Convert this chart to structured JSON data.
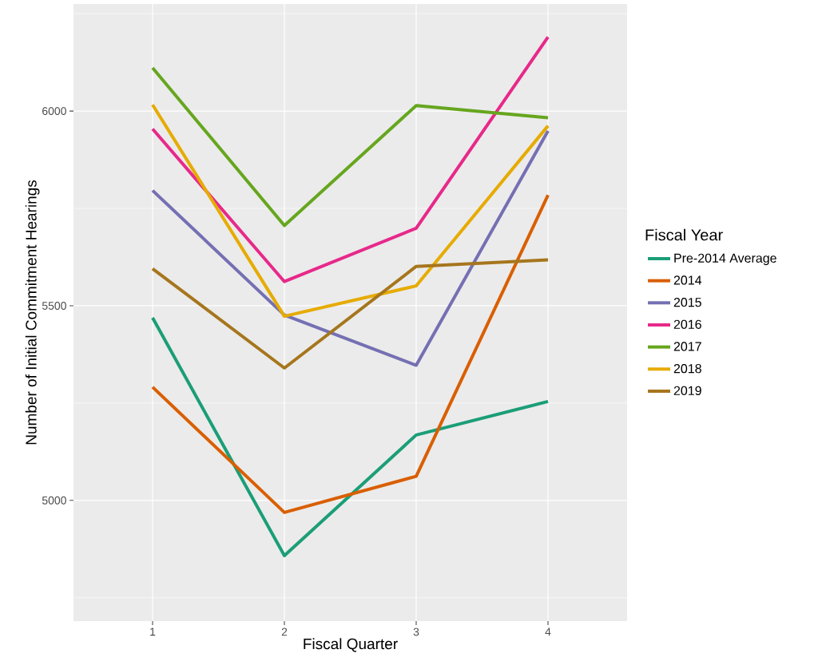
{
  "chart_data": {
    "type": "line",
    "xlabel": "Fiscal Quarter",
    "ylabel": "Number of Initial Commitment Hearings",
    "legend_title": "Fiscal Year",
    "x": [
      1,
      2,
      3,
      4
    ],
    "series": [
      {
        "name": "Pre-2014 Average",
        "color": "#1b9e77",
        "values": [
          5469,
          4858,
          5168,
          5254
        ]
      },
      {
        "name": "2014",
        "color": "#d95f02",
        "values": [
          5291,
          4969,
          5062,
          5784
        ]
      },
      {
        "name": "2015",
        "color": "#7570b3",
        "values": [
          5796,
          5476,
          5347,
          5949
        ]
      },
      {
        "name": "2016",
        "color": "#e7298a",
        "values": [
          5954,
          5562,
          5699,
          6190
        ]
      },
      {
        "name": "2017",
        "color": "#66a61e",
        "values": [
          6111,
          5706,
          6014,
          5983
        ]
      },
      {
        "name": "2018",
        "color": "#e6ab02",
        "values": [
          6016,
          5473,
          5551,
          5962
        ]
      },
      {
        "name": "2019",
        "color": "#a6761d",
        "values": [
          5595,
          5340,
          5601,
          5618
        ]
      }
    ],
    "xlim": [
      0.4,
      4.6
    ],
    "ylim": [
      4690,
      6275
    ],
    "xticks": [
      1,
      2,
      3,
      4
    ],
    "yticks": [
      {
        "value": 4750,
        "label": null
      },
      5000,
      {
        "value": 5250,
        "label": null
      },
      5500,
      {
        "value": 5750,
        "label": null
      },
      6000,
      {
        "value": 6250,
        "label": null
      }
    ],
    "grid": true,
    "legend": "right",
    "marker": "none",
    "line_style": "solid"
  }
}
